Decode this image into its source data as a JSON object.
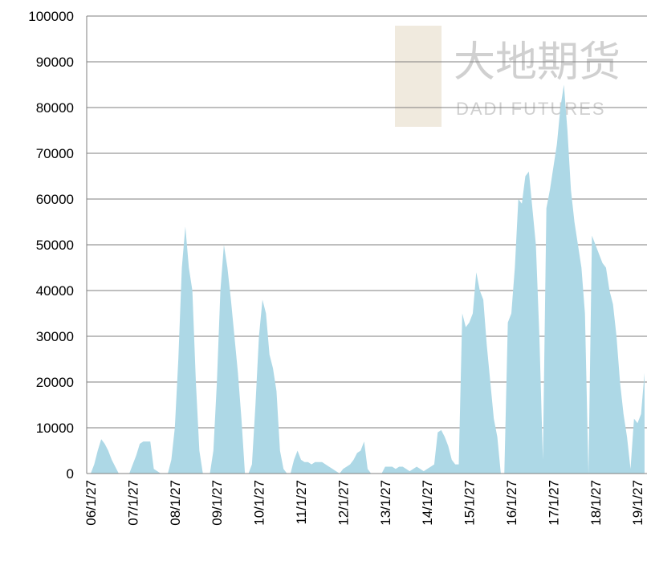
{
  "chart_data": {
    "type": "area",
    "color": "#add8e6",
    "watermark": [
      "大地期货",
      "DADI FUTURES"
    ],
    "ylim": [
      0,
      100000
    ],
    "yticks": [
      0,
      10000,
      20000,
      30000,
      40000,
      50000,
      60000,
      70000,
      80000,
      90000,
      100000
    ],
    "grid": true,
    "categories": [
      "06/1/27",
      null,
      null,
      null,
      null,
      null,
      null,
      null,
      null,
      null,
      null,
      null,
      "07/1/27",
      null,
      null,
      null,
      null,
      null,
      null,
      null,
      null,
      null,
      null,
      null,
      "08/1/27",
      null,
      null,
      null,
      null,
      null,
      null,
      null,
      null,
      null,
      null,
      null,
      "09/1/27",
      null,
      null,
      null,
      null,
      null,
      null,
      null,
      null,
      null,
      null,
      null,
      "10/1/27",
      null,
      null,
      null,
      null,
      null,
      null,
      null,
      null,
      null,
      null,
      null,
      "11/1/27",
      null,
      null,
      null,
      null,
      null,
      null,
      null,
      null,
      null,
      null,
      null,
      "12/1/27",
      null,
      null,
      null,
      null,
      null,
      null,
      null,
      null,
      null,
      null,
      null,
      "13/1/27",
      null,
      null,
      null,
      null,
      null,
      null,
      null,
      null,
      null,
      null,
      null,
      "14/1/27",
      null,
      null,
      null,
      null,
      null,
      null,
      null,
      null,
      null,
      null,
      null,
      "15/1/27",
      null,
      null,
      null,
      null,
      null,
      null,
      null,
      null,
      null,
      null,
      null,
      "16/1/27",
      null,
      null,
      null,
      null,
      null,
      null,
      null,
      null,
      null,
      null,
      null,
      "17/1/27",
      null,
      null,
      null,
      null,
      null,
      null,
      null,
      null,
      null,
      null,
      null,
      "18/1/27",
      null,
      null,
      null,
      null,
      null,
      null,
      null,
      null,
      null,
      null,
      null,
      "19/1/27",
      null,
      null
    ],
    "values": [
      0,
      2000,
      5000,
      7500,
      6500,
      5000,
      3000,
      1500,
      0,
      0,
      0,
      0,
      2000,
      4000,
      6500,
      7000,
      7000,
      7000,
      1000,
      500,
      0,
      0,
      0,
      3000,
      10000,
      25000,
      45000,
      54000,
      45000,
      40000,
      20000,
      5000,
      0,
      0,
      0,
      5000,
      20000,
      40000,
      50000,
      45000,
      38000,
      30000,
      22000,
      12000,
      0,
      0,
      2000,
      15000,
      30000,
      38000,
      35000,
      26000,
      23000,
      18000,
      5000,
      1000,
      0,
      0,
      3000,
      5000,
      3000,
      2500,
      2500,
      2000,
      2500,
      2500,
      2500,
      2000,
      1500,
      1000,
      500,
      0,
      1000,
      1500,
      2000,
      3000,
      4500,
      5000,
      7000,
      1000,
      0,
      0,
      0,
      0,
      1500,
      1500,
      1500,
      1000,
      1500,
      1500,
      1000,
      500,
      1000,
      1500,
      1000,
      500,
      1000,
      1500,
      2000,
      9000,
      9500,
      8000,
      6000,
      3000,
      2000,
      2000,
      35000,
      32000,
      33000,
      35000,
      44000,
      40000,
      38000,
      28000,
      20000,
      12000,
      8000,
      0,
      0,
      33000,
      35000,
      45000,
      60000,
      59000,
      65000,
      66000,
      58000,
      50000,
      30000,
      3000,
      58000,
      62000,
      67000,
      72000,
      80000,
      85000,
      75000,
      62000,
      55000,
      50000,
      45000,
      35000,
      0,
      52000,
      50000,
      48000,
      46000,
      45000,
      40000,
      37000,
      30000,
      20000,
      13000,
      8000,
      1000,
      12000,
      11000,
      13000,
      22000
    ]
  }
}
